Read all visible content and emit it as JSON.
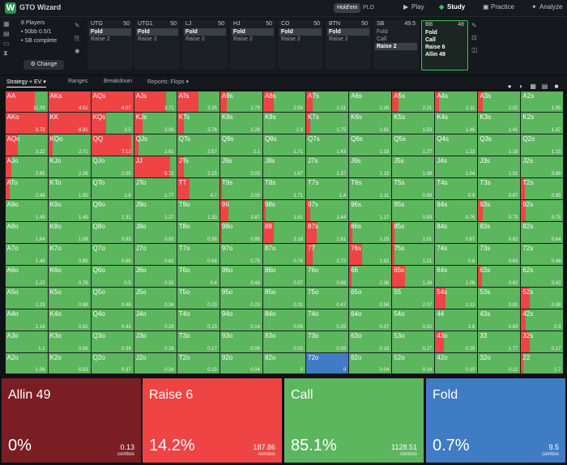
{
  "app": {
    "name": "GTO Wizard",
    "game_pills": [
      "Hold'em",
      "PLO"
    ],
    "nav": [
      {
        "label": "Play",
        "icon": "play-icon"
      },
      {
        "label": "Study",
        "icon": "study-icon"
      },
      {
        "label": "Practice",
        "icon": "practice-icon"
      },
      {
        "label": "Analyze",
        "icon": "analyze-icon"
      }
    ]
  },
  "game_info": {
    "players": "8 Players",
    "stakes": "• 50bb 0.5/1",
    "status": "• SB complete",
    "change_button": "Change"
  },
  "positions": [
    {
      "pos": "UTG",
      "stack": "50",
      "actions": [
        "Fold",
        "Raise 2"
      ],
      "selected": "Fold"
    },
    {
      "pos": "UTG1",
      "stack": "50",
      "actions": [
        "Fold",
        "Raise 2"
      ],
      "selected": "Fold"
    },
    {
      "pos": "LJ",
      "stack": "50",
      "actions": [
        "Fold",
        "Raise 2"
      ],
      "selected": "Fold"
    },
    {
      "pos": "HJ",
      "stack": "50",
      "actions": [
        "Fold",
        "Raise 2"
      ],
      "selected": "Fold"
    },
    {
      "pos": "CO",
      "stack": "50",
      "actions": [
        "Fold",
        "Raise 2"
      ],
      "selected": "Fold"
    },
    {
      "pos": "BTN",
      "stack": "50",
      "actions": [
        "Fold",
        "Raise 2"
      ],
      "selected": "Fold"
    },
    {
      "pos": "SB",
      "stack": "49.5",
      "actions": [
        "Fold",
        "Call",
        "Raise 2"
      ],
      "selected": "Raise 2"
    },
    {
      "pos": "BB",
      "stack": "48",
      "actions": [
        "Fold",
        "Call",
        "Raise 6",
        "Allin 49"
      ],
      "selected": "",
      "active": true
    }
  ],
  "tabs": [
    "Strategy + EV",
    "Ranges",
    "Breakdown",
    "Reports: Flops"
  ],
  "colors": {
    "allin": "#7a1e24",
    "raise": "#ee4444",
    "call": "#5cb65e",
    "fold": "#3f7cc4"
  },
  "matrix": [
    [
      "AA|11.09|r70",
      "AKs|4.51|r100",
      "AQs|4.07|r100",
      "AJs|3.71|r75",
      "ATs|3.35|r50",
      "A9s|2.79|r15",
      "A8s|2.54|r25",
      "A7s|2.31|r15",
      "A6s|2.26|",
      "A5s|2.21|r15",
      "A4s|2.11|r10",
      "A3s|2.02|r10",
      "A2s|1.95|"
    ],
    [
      "AKo|3.72|r100",
      "KK|8.91|r100",
      "KQs|3.5|r35",
      "KJs|3.06|r20",
      "KTs|2.76|r15",
      "K9s|2.28|",
      "K8s|1.9|",
      "K7s|1.75|r10",
      "K6s|1.61|",
      "K5s|1.53|",
      "K4s|1.46|",
      "K3s|1.41|",
      "K2s|1.37|"
    ],
    [
      "AQo|3.22|r30",
      "KQo|2.71|r10",
      "QQ|7.12|r95",
      "QJs|2.61|r10",
      "QTs|2.57|",
      "Q9s|2.1|",
      "Q8s|1.71|",
      "Q7s|1.43|",
      "Q6s|1.33|",
      "Q5s|1.27|",
      "Q4s|1.22|",
      "Q3s|1.18|",
      "Q2s|1.15|"
    ],
    [
      "AJo|2.85|r15",
      "KJo|2.26|",
      "QJo|2.05|",
      "JJ|5.72|r85",
      "JTs|2.25|r15",
      "J9s|2.03|",
      "J8s|1.67|",
      "J7s|1.37|",
      "J6s|1.13|",
      "J5s|1.08|",
      "J4s|1.04|",
      "J3s|1.01|",
      "J2s|0.96|"
    ],
    [
      "ATo|2.48|r10",
      "KTo|1.95|",
      "QTo|1.8|",
      "JTo|1.77|",
      "TT|4.7|r30",
      "T9s|2.05|r5",
      "T8s|1.71|",
      "T7s|1.4|",
      "T6s|1.11|",
      "T5s|0.93|",
      "T4s|0.9|",
      "T3s|0.87|",
      "T2s|0.85|r8"
    ],
    [
      "A9o|1.45|",
      "K9o|1.45|",
      "Q9o|1.31|",
      "J9o|1.27|",
      "T9o|1.33|",
      "99|3.87|r20",
      "98s|1.61|r5",
      "97s|1.44|r10",
      "96s|1.17|",
      "95s|0.93|",
      "94s|0.76|",
      "93s|0.73|r10",
      "92s|0.75|r10"
    ],
    [
      "A8o|1.64|",
      "K8o|1.09|",
      "Q8o|0.93|",
      "J8o|0.92|",
      "T8o|0.98|",
      "98o|0.95|r5",
      "88|3.18|r25",
      "87s|1.61|r25",
      "86s|1.25|r8",
      "85s|1.01|r5",
      "84s|0.67|",
      "83s|0.62|",
      "82s|0.64|"
    ],
    [
      "A7o|1.45|",
      "K7o|0.85|",
      "Q7o|0.65|",
      "J7o|0.62|",
      "T7o|0.66|",
      "97o|0.75|",
      "87o|0.76|",
      "77|2.72|r15",
      "76s|1.52|r30",
      "75s|1.21|r5",
      "74s|0.8|",
      "73s|0.63|",
      "72s|0.46|"
    ],
    [
      "A6o|1.22|",
      "K6o|0.76|",
      "Q6o|0.5|",
      "J6o|0.32|",
      "T6o|0.4|",
      "96o|0.46|",
      "86o|0.57|",
      "76o|0.68|",
      "66|2.36|r5",
      "65s|1.28|r30",
      "64s|1.06|",
      "63s|0.62|r8",
      "62s|0.42|"
    ],
    [
      "A5o|1.23|",
      "K5o|0.68|",
      "Q5o|0.48|",
      "J5o|0.34|",
      "T5o|0.23|",
      "95o|0.23|",
      "85o|0.31|",
      "75o|0.47|",
      "65o|0.58|",
      "55|2.07|",
      "54s|1.12|r25",
      "53s|0.81|",
      "52s|0.38|r20"
    ],
    [
      "A4o|1.16|",
      "K4o|0.62|",
      "Q4o|0.43|",
      "J4o|0.29|",
      "T4o|0.15|",
      "94o|0.14|",
      "84o|0.09|",
      "74o|0.25|",
      "64o|0.37|",
      "54o|0.52|",
      "44|1.6|",
      "43s|0.63|",
      "42s|0.3|r10"
    ],
    [
      "A3o|1.1|",
      "K3o|0.56|",
      "Q3o|0.39|",
      "J3o|0.26|",
      "T3o|0.17|",
      "93o|0.09|",
      "83o|0.02|",
      "73o|0.09|",
      "63o|0.16|",
      "53o|0.27|",
      "43o|0.29|r20",
      "33|1.77|",
      "32s|0.17|r20"
    ],
    [
      "A2o|1.06|",
      "K2o|0.53|",
      "Q2o|0.37|",
      "J2o|0.24|",
      "T2o|0.15|",
      "92o|0.04|",
      "82o|0|",
      "72o|0|f100",
      "62o|0.04|",
      "52o|0.14|",
      "42o|0.15|",
      "32o|0.11|",
      "22|1.7|r5"
    ]
  ],
  "summary": [
    {
      "label": "Allin 49",
      "pct": "0%",
      "combos": "0.13",
      "combos_label": "combos",
      "color": "#7a1e24"
    },
    {
      "label": "Raise 6",
      "pct": "14.2%",
      "combos": "187.86",
      "combos_label": "combos",
      "color": "#ee4444"
    },
    {
      "label": "Call",
      "pct": "85.1%",
      "combos": "1128.51",
      "combos_label": "combos",
      "color": "#5cb65e"
    },
    {
      "label": "Fold",
      "pct": "0.7%",
      "combos": "9.5",
      "combos_label": "combos",
      "color": "#3f7cc4"
    }
  ]
}
